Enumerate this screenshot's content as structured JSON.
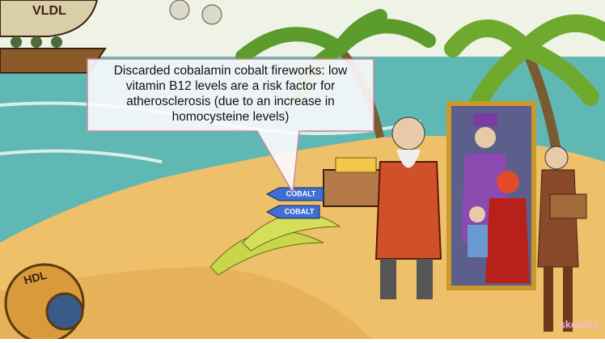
{
  "callout": {
    "lines": [
      "Discarded cobalamin cobalt fireworks: low",
      "vitamin B12 levels are a risk factor for",
      "atherosclerosis (due to an increase in",
      "homocysteine levels)"
    ]
  },
  "scene": {
    "balloon_label": "VLDL",
    "rocket_labels": [
      "COBALT",
      "COBALT"
    ],
    "helmet_label": "HDL"
  },
  "watermark": "sketchy"
}
